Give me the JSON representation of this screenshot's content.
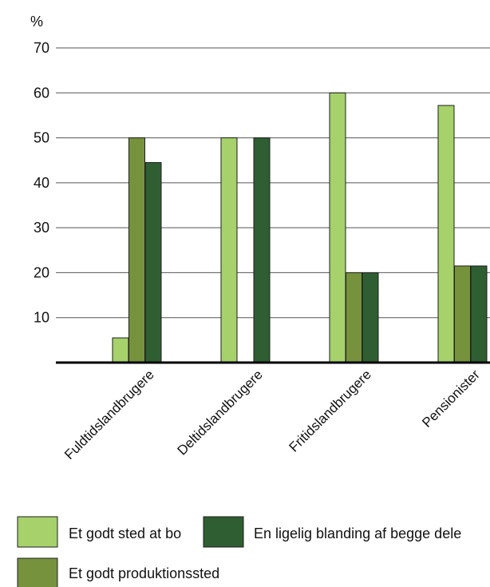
{
  "chart_data": {
    "type": "bar",
    "y_unit": "%",
    "categories": [
      "Fuldtidslandbrugere",
      "Deltidslandbrugere",
      "Fritidslandbrugere",
      "Pensionister"
    ],
    "series": [
      {
        "name": "Et godt sted at bo",
        "values": [
          5.5,
          50,
          60,
          57.2
        ],
        "color": "#a6d16b"
      },
      {
        "name": "Et godt produktionssted",
        "values": [
          50,
          null,
          20,
          21.5
        ],
        "color": "#76923c"
      },
      {
        "name": "En ligelig blanding af begge dele",
        "values": [
          44.5,
          50,
          20,
          21.5
        ],
        "color": "#2f5e32"
      }
    ],
    "yticks": [
      10,
      20,
      30,
      40,
      50,
      60,
      70
    ],
    "ylim": [
      0,
      70
    ],
    "grid": true,
    "legend_placement": "bottom"
  }
}
